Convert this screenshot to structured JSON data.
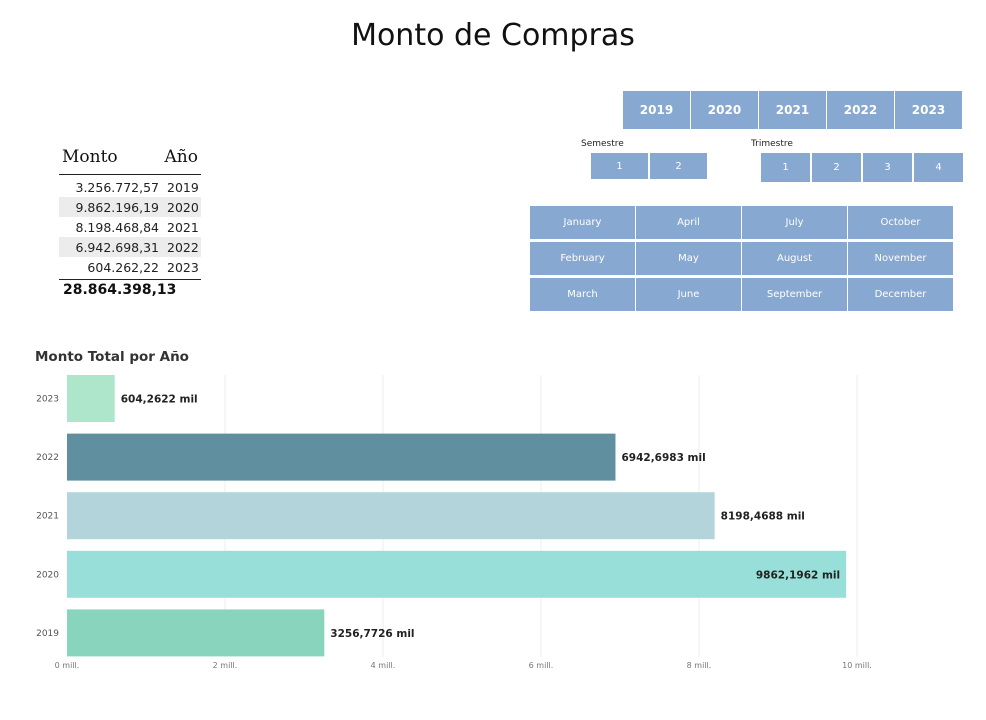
{
  "page_title": "Monto de Compras",
  "summary_table": {
    "headers": [
      "Monto",
      "Año"
    ],
    "rows": [
      {
        "monto": "3.256.772,57",
        "anio": "2019"
      },
      {
        "monto": "9.862.196,19",
        "anio": "2020"
      },
      {
        "monto": "8.198.468,84",
        "anio": "2021"
      },
      {
        "monto": "6.942.698,31",
        "anio": "2022"
      },
      {
        "monto": "604.262,22",
        "anio": "2023"
      }
    ],
    "total": "28.864.398,13"
  },
  "year_slicer": [
    "2019",
    "2020",
    "2021",
    "2022",
    "2023"
  ],
  "semestre_slicer": {
    "label": "Semestre",
    "items": [
      "1",
      "2"
    ]
  },
  "trimestre_slicer": {
    "label": "Trimestre",
    "items": [
      "1",
      "2",
      "3",
      "4"
    ]
  },
  "month_slicer": {
    "rows": [
      [
        "January",
        "April",
        "July",
        "October"
      ],
      [
        "February",
        "May",
        "August",
        "November"
      ],
      [
        "March",
        "June",
        "September",
        "December"
      ]
    ]
  },
  "colors": {
    "slicer_bg": "#87a8d0",
    "slicer_text": "#ffffff"
  },
  "chart_data": {
    "type": "bar",
    "orientation": "horizontal",
    "title": "Monto Total por Año",
    "categories": [
      "2023",
      "2022",
      "2021",
      "2020",
      "2019"
    ],
    "values": [
      604.2622,
      6942.6983,
      8198.4688,
      9862.1962,
      3256.7726
    ],
    "data_labels": [
      "604,2622 mil",
      "6942,6983 mil",
      "8198,4688 mil",
      "9862,1962 mil",
      "3256,7726 mil"
    ],
    "bar_colors": [
      "#aee6cc",
      "#6090a0",
      "#b3d4da",
      "#97dfd8",
      "#88d4bc"
    ],
    "x_ticks": [
      "0 mill.",
      "2 mill.",
      "4 mill.",
      "6 mill.",
      "8 mill.",
      "10 mill."
    ],
    "x_tick_values": [
      0,
      2000,
      4000,
      6000,
      8000,
      10000
    ],
    "xlim": [
      0,
      10000
    ],
    "grid": true
  }
}
